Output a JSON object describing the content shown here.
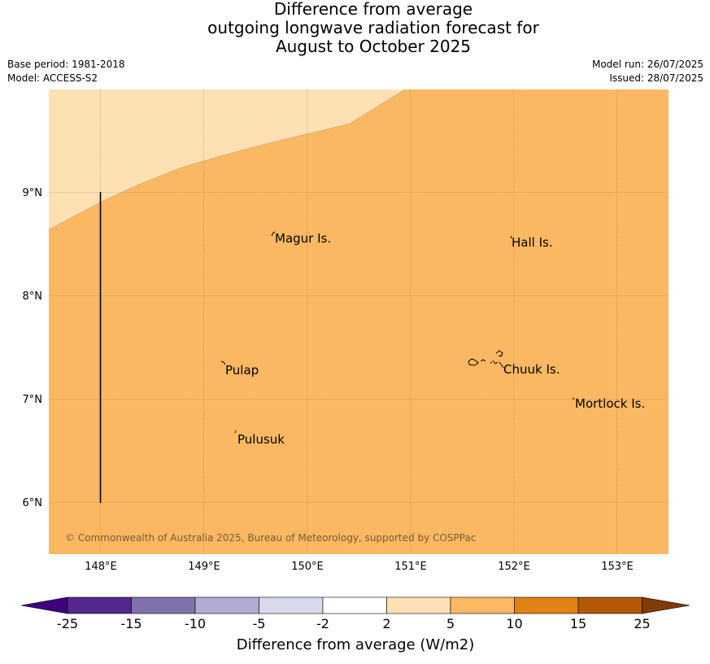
{
  "title_lines": [
    "Difference from average",
    "outgoing longwave radiation forecast for",
    "August to October 2025"
  ],
  "meta": {
    "base_period": "Base period: 1981-2018",
    "model": "Model: ACCESS-S2",
    "model_run": "Model run: 26/07/2025",
    "issued": "Issued: 28/07/2025"
  },
  "map": {
    "lon_range": [
      147.5,
      153.5
    ],
    "lat_range": [
      5.5,
      10.0
    ],
    "lon_ticks": [
      "148°E",
      "149°E",
      "150°E",
      "151°E",
      "152°E",
      "153°E"
    ],
    "lat_ticks": [
      "9°N",
      "8°N",
      "7°N",
      "6°N"
    ],
    "places": [
      "Magur Is.",
      "Hall Is.",
      "Pulap",
      "Chuuk Is.",
      "Mortlock Is.",
      "Pulusuk"
    ],
    "fill_colors": {
      "light": "#fde0b4",
      "mid": "#fbb862"
    },
    "copyright": "© Commonwealth of Australia 2025, Bureau of Meteorology, supported by COSPPac"
  },
  "colorbar": {
    "label": "Difference from average (W/m2)",
    "ticks": [
      "-25",
      "-15",
      "-10",
      "-5",
      "-2",
      "2",
      "5",
      "10",
      "15",
      "25"
    ],
    "colors": [
      "#3f007d",
      "#54278f",
      "#8073ac",
      "#b2abd2",
      "#d8daeb",
      "#ffffff",
      "#fee0b6",
      "#fdb863",
      "#e08214",
      "#b35806",
      "#7f3b08"
    ]
  }
}
